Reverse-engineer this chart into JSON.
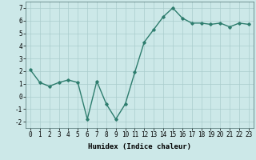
{
  "x": [
    0,
    1,
    2,
    3,
    4,
    5,
    6,
    7,
    8,
    9,
    10,
    11,
    12,
    13,
    14,
    15,
    16,
    17,
    18,
    19,
    20,
    21,
    22,
    23
  ],
  "y": [
    2.1,
    1.1,
    0.8,
    1.1,
    1.3,
    1.1,
    -1.8,
    1.2,
    -0.6,
    -1.8,
    -0.6,
    1.9,
    4.3,
    5.3,
    6.3,
    7.0,
    6.2,
    5.8,
    5.8,
    5.7,
    5.8,
    5.5,
    5.8,
    5.7
  ],
  "line_color": "#2e7d6e",
  "marker": "D",
  "marker_size": 1.8,
  "linewidth": 1.0,
  "xlabel": "Humidex (Indice chaleur)",
  "ylim": [
    -2.5,
    7.5
  ],
  "xlim": [
    -0.5,
    23.5
  ],
  "yticks": [
    -2,
    -1,
    0,
    1,
    2,
    3,
    4,
    5,
    6,
    7
  ],
  "xticks": [
    0,
    1,
    2,
    3,
    4,
    5,
    6,
    7,
    8,
    9,
    10,
    11,
    12,
    13,
    14,
    15,
    16,
    17,
    18,
    19,
    20,
    21,
    22,
    23
  ],
  "bg_color": "#cce8e8",
  "grid_color": "#aacccc",
  "tick_fontsize": 5.5,
  "xlabel_fontsize": 6.5
}
